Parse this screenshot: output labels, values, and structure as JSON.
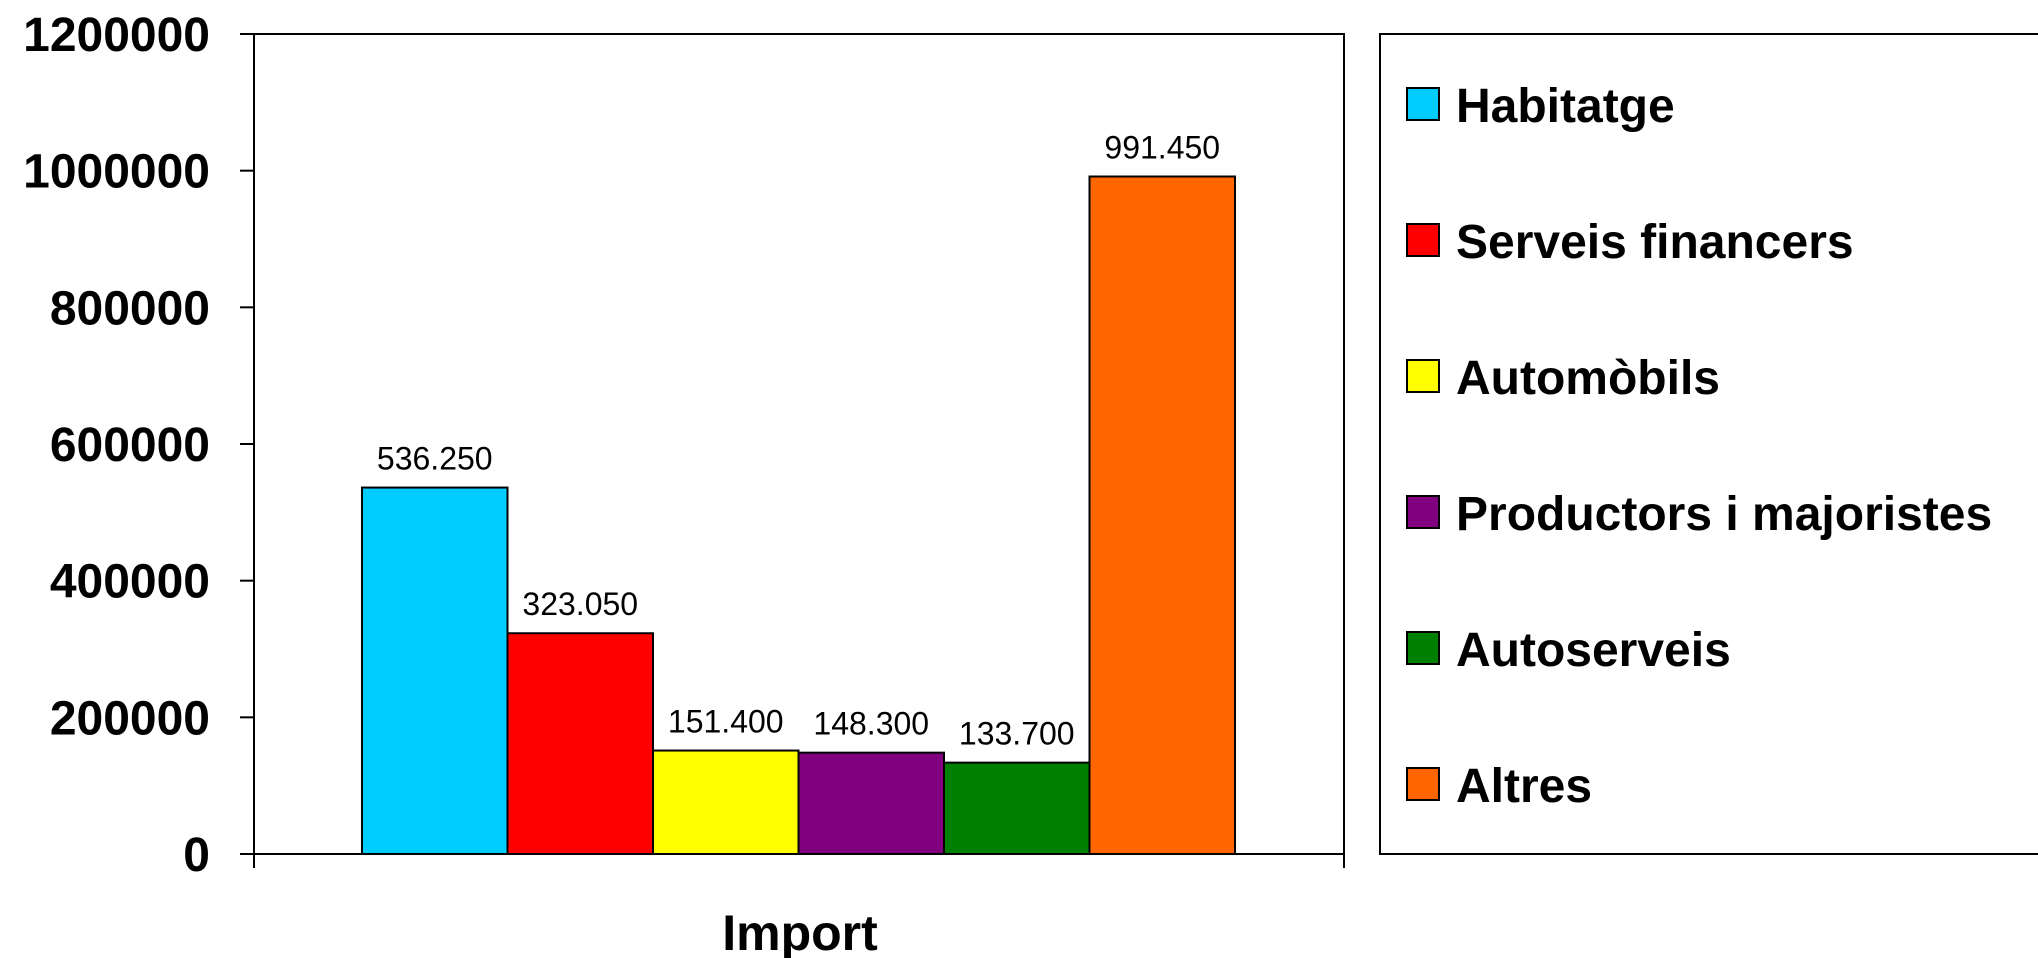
{
  "chart_data": {
    "type": "bar",
    "categories": [
      "Import"
    ],
    "series": [
      {
        "name": "Habitatge",
        "values": [
          536250
        ],
        "label": "536.250",
        "color": "#00CCFF"
      },
      {
        "name": "Serveis financers",
        "values": [
          323050
        ],
        "label": "323.050",
        "color": "#FF0000"
      },
      {
        "name": "Automòbils",
        "values": [
          151400
        ],
        "label": "151.400",
        "color": "#FFFF00"
      },
      {
        "name": "Productors i majoristes",
        "values": [
          148300
        ],
        "label": "148.300",
        "color": "#800080"
      },
      {
        "name": "Autoserveis",
        "values": [
          133700
        ],
        "label": "133.700",
        "color": "#008000"
      },
      {
        "name": "Altres",
        "values": [
          991450
        ],
        "label": "991.450",
        "color": "#FF6600"
      }
    ],
    "title": "",
    "xlabel": "",
    "ylabel": "",
    "ylim": [
      0,
      1200000
    ],
    "yticks": [
      "0",
      "200000",
      "400000",
      "600000",
      "800000",
      "1000000",
      "1200000"
    ],
    "grid": false,
    "legend_position": "right"
  }
}
